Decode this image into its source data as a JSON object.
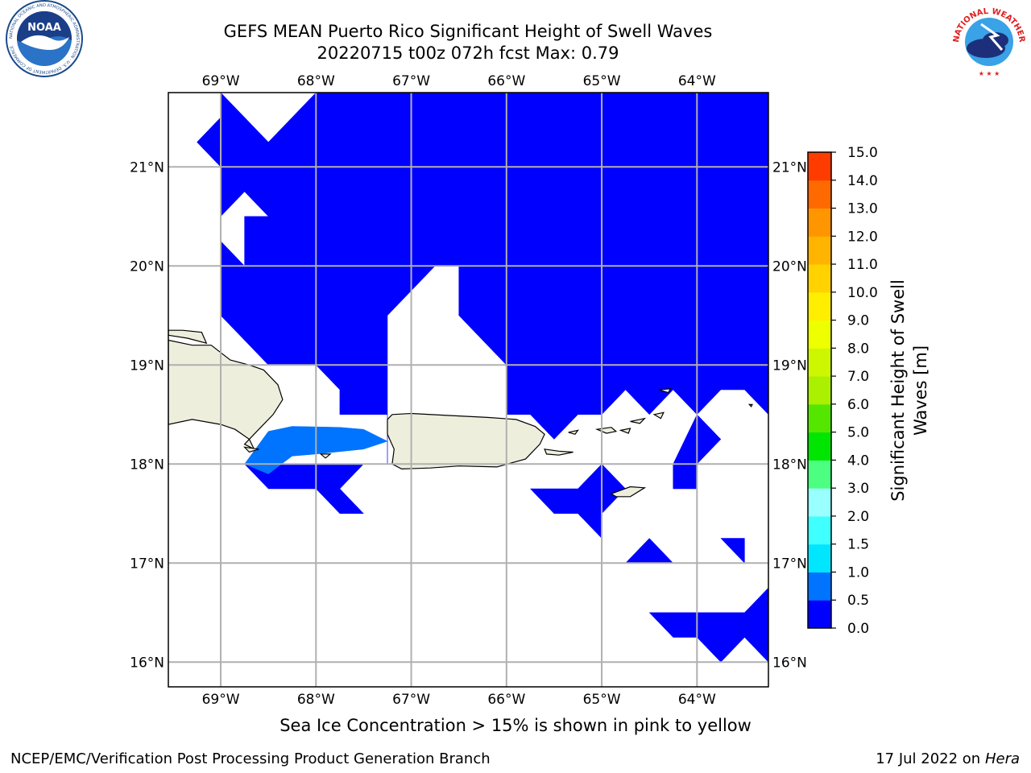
{
  "title_line1": "GEFS MEAN Puerto Rico Significant Height of Swell Waves",
  "title_line2": "20220715 t00z 072h fcst   Max: 0.79",
  "footnote": "Sea Ice Concentration > 15% is shown in pink to yellow",
  "credit_left": "NCEP/EMC/Verification Post Processing Product Generation Branch",
  "credit_date": "17 Jul 2022 on ",
  "credit_host": "Hera",
  "logos": {
    "noaa": {
      "text": "NOAA",
      "ring_text": "NATIONAL OCEANIC AND ATMOSPHERIC ADMINISTRATION · U.S. DEPARTMENT OF COMMERCE"
    },
    "nws": {
      "ring_text": "NATIONAL WEATHER SERVICE"
    }
  },
  "map": {
    "lon_range": [
      -69.55,
      -63.25
    ],
    "lat_range": [
      15.75,
      21.75
    ],
    "lon_ticks": [
      -69,
      -68,
      -67,
      -66,
      -65,
      -64
    ],
    "lon_labels": [
      "69°W",
      "68°W",
      "67°W",
      "66°W",
      "65°W",
      "64°W"
    ],
    "lat_ticks": [
      21,
      20,
      19,
      18,
      17,
      16
    ],
    "lat_labels": [
      "21°N",
      "20°N",
      "19°N",
      "18°N",
      "17°N",
      "16°N"
    ],
    "gridlines": true,
    "land_color": "#eeeedd",
    "coast_color": "#000000",
    "grid_color": "#b0b0b0"
  },
  "colorbar": {
    "label": "Significant Height of Swell Waves [m]",
    "ticks": [
      "0.0",
      "0.5",
      "1.0",
      "1.5",
      "2.0",
      "3.0",
      "4.0",
      "5.0",
      "6.0",
      "7.0",
      "8.0",
      "9.0",
      "10.0",
      "11.0",
      "12.0",
      "13.0",
      "14.0",
      "15.0"
    ],
    "colors": [
      "#0000ff",
      "#0073ff",
      "#00e6ff",
      "#40ffff",
      "#99ffff",
      "#4dff80",
      "#00e600",
      "#55e600",
      "#aaf000",
      "#ccf700",
      "#eeff00",
      "#ffee00",
      "#ffd200",
      "#ffb400",
      "#ff9600",
      "#ff6a00",
      "#ff3c00",
      "#ff0000"
    ]
  },
  "chart_data": {
    "type": "heatmap",
    "title": "GEFS MEAN Puerto Rico Significant Height of Swell Waves",
    "subtitle": "20220715 t00z 072h fcst   Max: 0.79",
    "variable": "Significant Height of Swell Waves [m]",
    "max_value": 0.79,
    "xlim": [
      -69.55,
      -63.25
    ],
    "ylim": [
      15.75,
      21.75
    ],
    "color_levels": [
      0.0,
      0.5,
      1.0,
      1.5,
      2.0,
      3.0,
      4.0,
      5.0,
      6.0,
      7.0,
      8.0,
      9.0,
      10.0,
      11.0,
      12.0,
      13.0,
      14.0,
      15.0
    ],
    "filled_regions": [
      {
        "level": "0.0-0.5",
        "color": "#0000ff",
        "polygons": [
          [
            [
              -69.0,
              21.75
            ],
            [
              -68.5,
              21.25
            ],
            [
              -68.0,
              21.75
            ],
            [
              -63.25,
              21.75
            ],
            [
              -63.25,
              18.5
            ],
            [
              -63.5,
              18.75
            ],
            [
              -63.75,
              18.75
            ],
            [
              -64.0,
              18.5
            ],
            [
              -64.25,
              18.75
            ],
            [
              -64.5,
              18.5
            ],
            [
              -64.75,
              18.75
            ],
            [
              -65.0,
              18.5
            ],
            [
              -65.25,
              18.5
            ],
            [
              -65.5,
              18.25
            ],
            [
              -65.75,
              18.5
            ],
            [
              -66.0,
              18.5
            ],
            [
              -66.0,
              19.0
            ],
            [
              -66.25,
              19.25
            ],
            [
              -66.5,
              19.5
            ],
            [
              -66.5,
              20.0
            ],
            [
              -66.75,
              20.0
            ],
            [
              -67.25,
              19.5
            ],
            [
              -67.25,
              18.0
            ],
            [
              -68.75,
              18.0
            ],
            [
              -68.5,
              17.75
            ],
            [
              -68.0,
              17.75
            ],
            [
              -67.75,
              17.5
            ],
            [
              -67.5,
              17.5
            ],
            [
              -67.75,
              17.75
            ],
            [
              -67.5,
              18.0
            ],
            [
              -67.25,
              18.0
            ],
            [
              -67.25,
              18.5
            ],
            [
              -67.75,
              18.5
            ],
            [
              -67.75,
              18.75
            ],
            [
              -68.0,
              19.0
            ],
            [
              -68.5,
              19.0
            ],
            [
              -68.75,
              19.25
            ],
            [
              -69.0,
              19.5
            ],
            [
              -69.0,
              20.25
            ],
            [
              -68.75,
              20.0
            ],
            [
              -68.75,
              20.5
            ],
            [
              -68.5,
              20.5
            ],
            [
              -68.75,
              20.75
            ],
            [
              -69.0,
              20.5
            ],
            [
              -69.0,
              21.0
            ],
            [
              -69.25,
              21.25
            ],
            [
              -69.0,
              21.5
            ]
          ],
          [
            [
              -65.25,
              17.75
            ],
            [
              -65.0,
              18.0
            ],
            [
              -64.75,
              17.75
            ],
            [
              -65.0,
              17.5
            ],
            [
              -65.0,
              17.25
            ],
            [
              -65.25,
              17.5
            ],
            [
              -65.5,
              17.5
            ],
            [
              -65.75,
              17.75
            ]
          ],
          [
            [
              -64.0,
              18.0
            ],
            [
              -63.75,
              18.25
            ],
            [
              -64.0,
              18.5
            ],
            [
              -64.25,
              18.0
            ],
            [
              -64.25,
              17.75
            ],
            [
              -64.0,
              17.75
            ]
          ],
          [
            [
              -64.5,
              17.25
            ],
            [
              -64.25,
              17.0
            ],
            [
              -64.75,
              17.0
            ]
          ],
          [
            [
              -63.75,
              17.25
            ],
            [
              -63.5,
              17.0
            ],
            [
              -63.5,
              17.25
            ]
          ],
          [
            [
              -64.5,
              16.5
            ],
            [
              -64.25,
              16.25
            ],
            [
              -64.0,
              16.25
            ],
            [
              -63.75,
              16.0
            ],
            [
              -63.5,
              16.25
            ],
            [
              -63.25,
              16.0
            ],
            [
              -63.25,
              16.75
            ],
            [
              -63.5,
              16.5
            ]
          ]
        ]
      },
      {
        "level": "0.5-1.0",
        "color": "#0073ff",
        "polygons": [
          [
            [
              -68.75,
              18.0
            ],
            [
              -68.5,
              18.33
            ],
            [
              -68.25,
              18.38
            ],
            [
              -67.75,
              18.37
            ],
            [
              -67.5,
              18.35
            ],
            [
              -67.25,
              18.23
            ],
            [
              -67.5,
              18.15
            ],
            [
              -68.0,
              18.1
            ],
            [
              -68.25,
              18.08
            ],
            [
              -68.5,
              17.9
            ]
          ]
        ]
      }
    ],
    "masked_regions": "white (no data) elsewhere over ocean; land in beige"
  }
}
